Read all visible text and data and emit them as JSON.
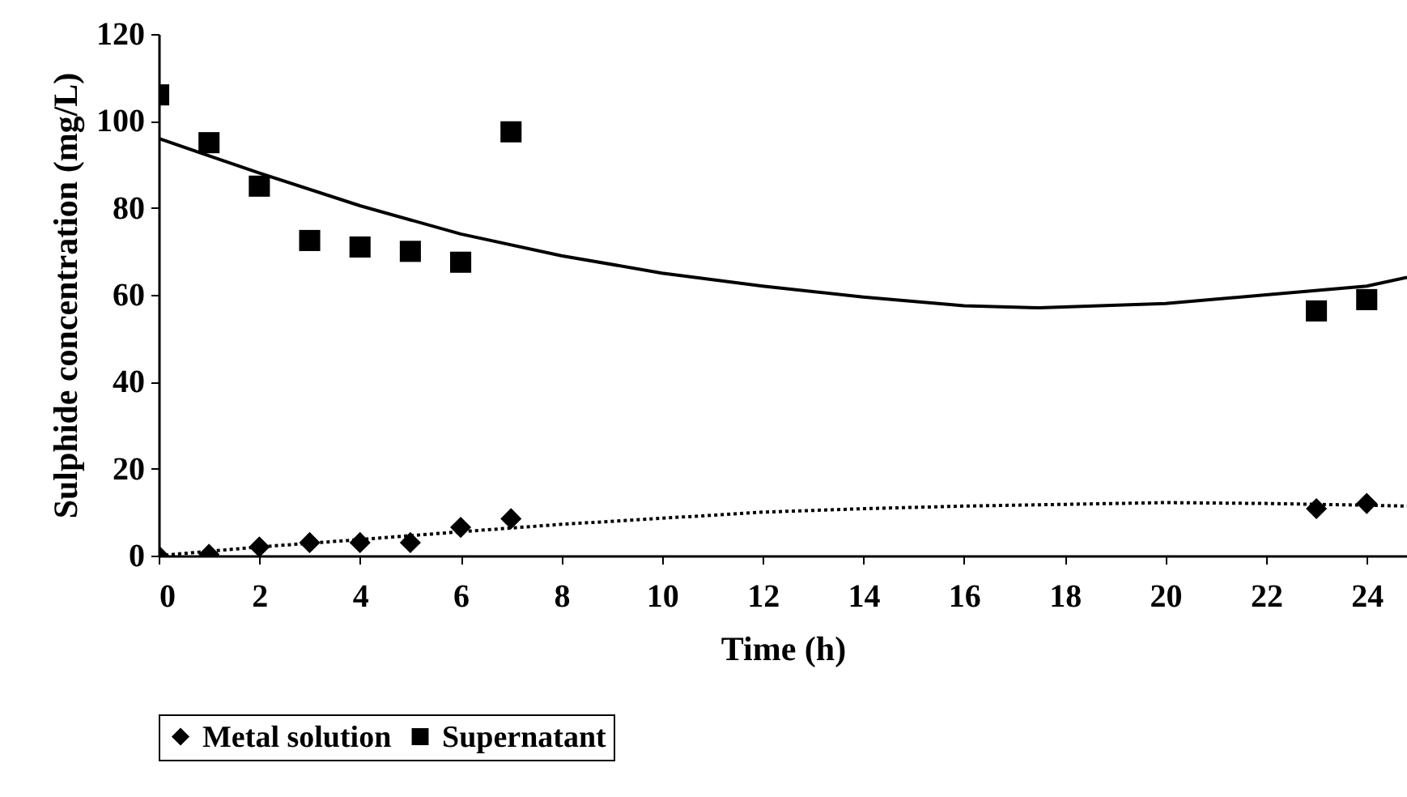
{
  "chart_data": {
    "type": "scatter",
    "xlabel": "Time (h)",
    "ylabel": "Sulphide concentration (mg/L)",
    "xlim": [
      0,
      24.8
    ],
    "xticks": [
      0,
      2,
      4,
      6,
      8,
      10,
      12,
      14,
      16,
      18,
      20,
      22,
      24
    ],
    "ylim": [
      0,
      120
    ],
    "yticks": [
      0,
      20,
      40,
      60,
      80,
      100,
      120
    ],
    "grid": false,
    "legend": "bottom",
    "series": [
      {
        "name": "Metal solution",
        "color": "#000000",
        "marker": "diamond",
        "x": [
          0,
          1,
          2,
          3,
          4,
          5,
          6,
          7,
          23,
          24
        ],
        "values": [
          0,
          0.3,
          2,
          3,
          3,
          3,
          6.5,
          8.5,
          10.8,
          12
        ]
      },
      {
        "name": "Supernatant",
        "color": "#000000",
        "marker": "square",
        "x": [
          0,
          1,
          2,
          3,
          4,
          5,
          6,
          7,
          23,
          24
        ],
        "values": [
          106,
          95,
          85,
          72.5,
          71,
          70,
          67.5,
          97.5,
          56.3,
          58.9
        ]
      },
      {
        "type": "line",
        "color": "#000000",
        "line_style": "dotted",
        "x": [
          0,
          2,
          4,
          6,
          8,
          10,
          12,
          14,
          16,
          18,
          20,
          22,
          24,
          24.8
        ],
        "values": [
          0,
          2,
          3.7,
          5.5,
          7.2,
          8.6,
          10,
          10.8,
          11.4,
          11.8,
          12.2,
          12,
          11.6,
          11.4
        ]
      },
      {
        "type": "line",
        "color": "#000000",
        "line_style": "solid",
        "x": [
          0,
          1,
          2,
          4,
          6,
          8,
          10,
          12,
          14,
          16,
          17.5,
          20,
          22,
          24,
          24.8
        ],
        "values": [
          96,
          92,
          88,
          80.5,
          74,
          69,
          65,
          62,
          59.5,
          57.5,
          57,
          58,
          60,
          62,
          64
        ]
      }
    ]
  }
}
